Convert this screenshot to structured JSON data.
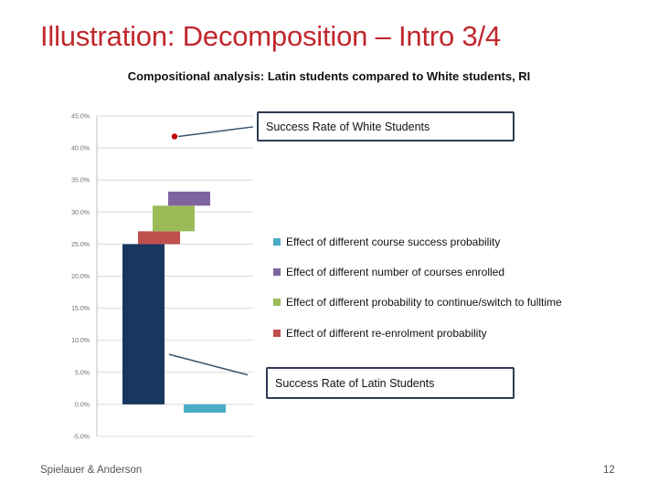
{
  "slide": {
    "title": "Illustration: Decomposition – Intro 3/4",
    "footer_left": "Spielauer & Anderson",
    "page_number": "12"
  },
  "colors": {
    "title_red": "#c0272d",
    "base_bar": "#17375e",
    "re_enrolment": "#c0504d",
    "continue_fulltime": "#9bbb59",
    "num_courses": "#8064a2",
    "course_success": "#4bacc6",
    "white_marker": "#c00000",
    "lines": "#3a5470"
  },
  "callouts": {
    "white": "Success Rate of White Students",
    "latin": "Success Rate of Latin Students"
  },
  "chart_data": {
    "type": "bar",
    "subtype": "waterfall",
    "title": "Compositional analysis: Latin students compared to White students, RI",
    "xlabel": "",
    "ylabel": "",
    "ylim": [
      -5,
      45
    ],
    "yticks": [
      "-5.0%",
      "0.0%",
      "5.0%",
      "10.0%",
      "15.0%",
      "20.0%",
      "25.0%",
      "30.0%",
      "35.0%",
      "40.0%",
      "45.0%"
    ],
    "grid": false,
    "legend_position": "right",
    "base": {
      "value": 25.0
    },
    "segments": [
      {
        "name": "Effect of different  re-enrolment  probability",
        "from": 25.0,
        "to": 27.0
      },
      {
        "name": "Effect of different  probability to continue/switch  to fulltime",
        "from": 27.0,
        "to": 31.0
      },
      {
        "name": "Effect of different  number of courses enrolled",
        "from": 31.0,
        "to": 33.2
      },
      {
        "name": "Effect of different  course success  probability",
        "from": 0.0,
        "to": -1.3
      }
    ],
    "white_success_rate": 41.8,
    "latin_line": {
      "from": 7.8,
      "to": 4.6
    },
    "white_line": {
      "from": 41.8,
      "to": 43.3
    }
  }
}
